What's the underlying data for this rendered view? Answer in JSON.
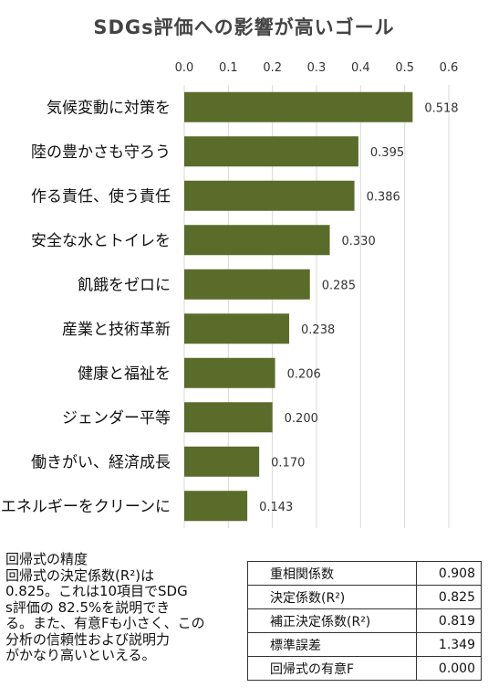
{
  "chart_data": {
    "type": "bar",
    "orientation": "horizontal",
    "title": "SDGs評価への影響が高いゴール",
    "categories": [
      "気候変動に対策を",
      "陸の豊かさも守ろう",
      "作る責任、使う責任",
      "安全な水とトイレを",
      "飢餓をゼロに",
      "産業と技術革新",
      "健康と福祉を",
      "ジェンダー平等",
      "働きがい、経済成長",
      "エネルギーをクリーンに"
    ],
    "values": [
      0.518,
      0.395,
      0.386,
      0.33,
      0.285,
      0.238,
      0.206,
      0.2,
      0.17,
      0.143
    ],
    "value_labels": [
      "0.518",
      "0.395",
      "0.386",
      "0.330",
      "0.285",
      "0.238",
      "0.206",
      "0.200",
      "0.170",
      "0.143"
    ],
    "xlim": [
      0,
      0.6
    ],
    "xticks": [
      "0.0",
      "0.1",
      "0.2",
      "0.3",
      "0.4",
      "0.5",
      "0.6"
    ],
    "axis_position": "top",
    "grid": true,
    "bar_color": "#5b6b2a"
  },
  "regression_note": {
    "title": "回帰式の精度",
    "lines": [
      "回帰式の決定係数(R²)は",
      "0.825。これは10項目でSDG",
      "s評価の 82.5%を説明でき",
      "る。また、有意Fも小さく、この",
      "分析の信頼性および説明力",
      "がかなり高いといえる。"
    ]
  },
  "stats_table": [
    {
      "label": "重相関係数",
      "value": "0.908"
    },
    {
      "label": "決定係数(R²)",
      "value": "0.825"
    },
    {
      "label": "補正決定係数(R²)",
      "value": "0.819"
    },
    {
      "label": "標準誤差",
      "value": "1.349"
    },
    {
      "label": "回帰式の有意F",
      "value": "0.000"
    }
  ]
}
